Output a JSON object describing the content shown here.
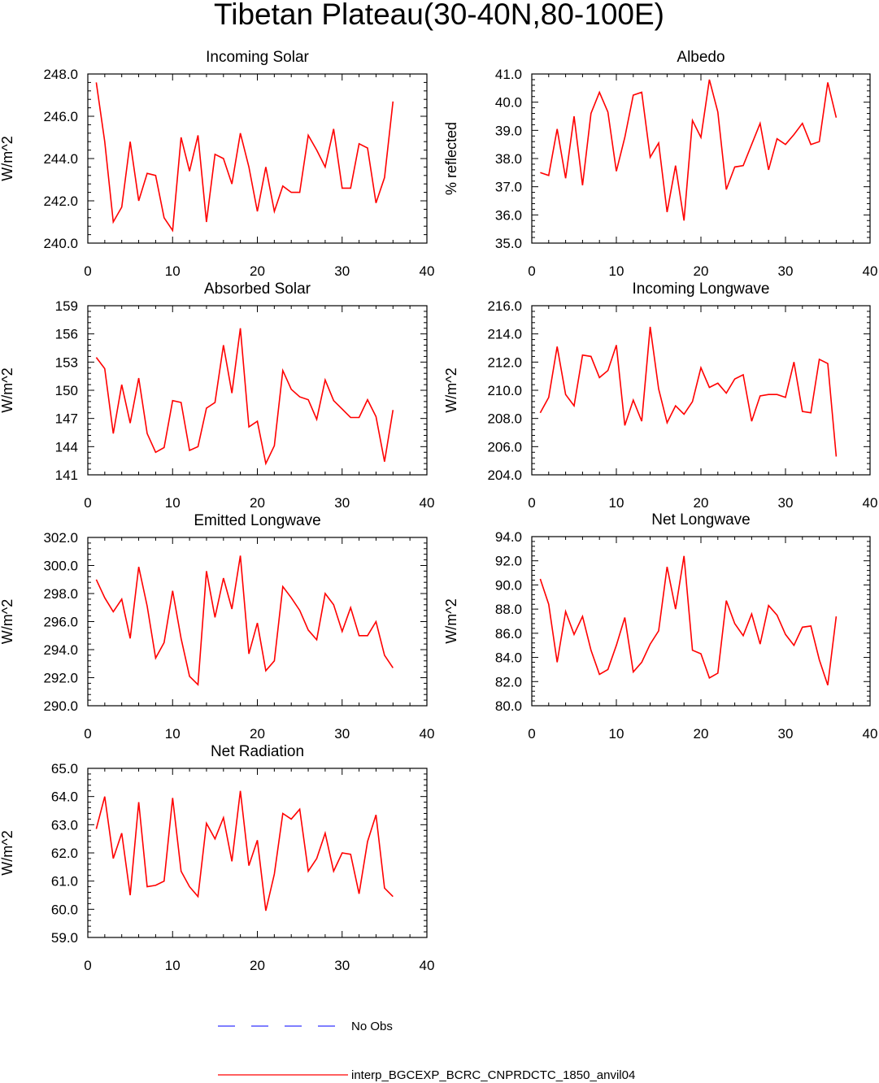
{
  "figure_title": "Tibetan Plateau(30-40N,80-100E)",
  "legend": [
    {
      "label": "No Obs",
      "color": "#3333ff",
      "style": "dashed"
    },
    {
      "label": "interp_BGCEXP_BCRC_CNPRDCTC_1850_anvil04",
      "color": "#ff0000",
      "style": "solid"
    }
  ],
  "chart_data": [
    {
      "type": "line",
      "title": "Incoming Solar",
      "xlabel": "",
      "ylabel": "W/m^2",
      "xlim": [
        0,
        40
      ],
      "ylim": [
        240,
        248
      ],
      "xticks": [
        0,
        10,
        20,
        30,
        40
      ],
      "xtick_labels": [
        "0",
        "10",
        "20",
        "30",
        "40"
      ],
      "yticks": [
        240,
        242,
        244,
        246,
        248
      ],
      "ytick_labels": [
        "240.0",
        "242.0",
        "244.0",
        "246.0",
        "248.0"
      ],
      "series": [
        {
          "name": "interp_BGCEXP_BCRC_CNPRDCTC_1850_anvil04",
          "color": "#ff0000",
          "x": [
            1,
            2,
            3,
            4,
            5,
            6,
            7,
            8,
            9,
            10,
            11,
            12,
            13,
            14,
            15,
            16,
            17,
            18,
            19,
            20,
            21,
            22,
            23,
            24,
            25,
            26,
            27,
            28,
            29,
            30,
            31,
            32,
            33,
            34,
            35,
            36
          ],
          "values": [
            247.6,
            244.8,
            241.0,
            241.7,
            244.8,
            242.0,
            243.3,
            243.2,
            241.2,
            240.6,
            245.0,
            243.4,
            245.1,
            241.0,
            244.2,
            244.0,
            242.8,
            245.2,
            243.6,
            241.5,
            243.6,
            241.5,
            242.7,
            242.4,
            242.4,
            245.1,
            244.4,
            243.6,
            245.4,
            242.6,
            242.6,
            244.7,
            244.5,
            241.9,
            243.1,
            246.7
          ]
        }
      ]
    },
    {
      "type": "line",
      "title": "Albedo",
      "xlabel": "",
      "ylabel": "% reflected",
      "xlim": [
        0,
        40
      ],
      "ylim": [
        35,
        41
      ],
      "xticks": [
        0,
        10,
        20,
        30,
        40
      ],
      "xtick_labels": [
        "0",
        "10",
        "20",
        "30",
        "40"
      ],
      "yticks": [
        35,
        36,
        37,
        38,
        39,
        40,
        41
      ],
      "ytick_labels": [
        "35.0",
        "36.0",
        "37.0",
        "38.0",
        "39.0",
        "40.0",
        "41.0"
      ],
      "series": [
        {
          "name": "interp_BGCEXP_BCRC_CNPRDCTC_1850_anvil04",
          "color": "#ff0000",
          "x": [
            1,
            2,
            3,
            4,
            5,
            6,
            7,
            8,
            9,
            10,
            11,
            12,
            13,
            14,
            15,
            16,
            17,
            18,
            19,
            20,
            21,
            22,
            23,
            24,
            25,
            26,
            27,
            28,
            29,
            30,
            31,
            32,
            33,
            34,
            35,
            36
          ],
          "values": [
            37.5,
            37.4,
            39.05,
            37.3,
            39.5,
            37.05,
            39.6,
            40.35,
            39.65,
            37.55,
            38.75,
            40.25,
            40.35,
            38.05,
            38.55,
            36.1,
            37.75,
            35.8,
            39.35,
            38.75,
            40.8,
            39.65,
            36.9,
            37.7,
            37.75,
            38.5,
            39.25,
            37.6,
            38.7,
            38.5,
            38.85,
            39.25,
            38.5,
            38.6,
            40.7,
            39.45
          ]
        }
      ]
    },
    {
      "type": "line",
      "title": "Absorbed Solar",
      "xlabel": "",
      "ylabel": "W/m^2",
      "xlim": [
        0,
        40
      ],
      "ylim": [
        141,
        159
      ],
      "xticks": [
        0,
        10,
        20,
        30,
        40
      ],
      "xtick_labels": [
        "0",
        "10",
        "20",
        "30",
        "40"
      ],
      "yticks": [
        141,
        144,
        147,
        150,
        153,
        156,
        159
      ],
      "ytick_labels": [
        "141",
        "144",
        "147",
        "150",
        "153",
        "156",
        "159"
      ],
      "series": [
        {
          "name": "interp_BGCEXP_BCRC_CNPRDCTC_1850_anvil04",
          "color": "#ff0000",
          "x": [
            1,
            2,
            3,
            4,
            5,
            6,
            7,
            8,
            9,
            10,
            11,
            12,
            13,
            14,
            15,
            16,
            17,
            18,
            19,
            20,
            21,
            22,
            23,
            24,
            25,
            26,
            27,
            28,
            29,
            30,
            31,
            32,
            33,
            34,
            35,
            36
          ],
          "values": [
            153.5,
            152.3,
            145.4,
            150.6,
            146.5,
            151.3,
            145.4,
            143.4,
            143.9,
            148.9,
            148.7,
            143.6,
            144.0,
            148.1,
            148.7,
            154.8,
            149.7,
            156.6,
            146.1,
            146.7,
            142.2,
            144.1,
            152.1,
            150.1,
            149.3,
            149.0,
            146.9,
            151.1,
            148.9,
            148.0,
            147.1,
            147.1,
            149.0,
            147.2,
            142.4,
            147.9
          ]
        }
      ]
    },
    {
      "type": "line",
      "title": "Incoming Longwave",
      "xlabel": "",
      "ylabel": "W/m^2",
      "xlim": [
        0,
        40
      ],
      "ylim": [
        204,
        216
      ],
      "xticks": [
        0,
        10,
        20,
        30,
        40
      ],
      "xtick_labels": [
        "0",
        "10",
        "20",
        "30",
        "40"
      ],
      "yticks": [
        204,
        206,
        208,
        210,
        212,
        214,
        216
      ],
      "ytick_labels": [
        "204.0",
        "206.0",
        "208.0",
        "210.0",
        "212.0",
        "214.0",
        "216.0"
      ],
      "series": [
        {
          "name": "interp_BGCEXP_BCRC_CNPRDCTC_1850_anvil04",
          "color": "#ff0000",
          "x": [
            1,
            2,
            3,
            4,
            5,
            6,
            7,
            8,
            9,
            10,
            11,
            12,
            13,
            14,
            15,
            16,
            17,
            18,
            19,
            20,
            21,
            22,
            23,
            24,
            25,
            26,
            27,
            28,
            29,
            30,
            31,
            32,
            33,
            34,
            35,
            36
          ],
          "values": [
            208.4,
            209.5,
            213.1,
            209.7,
            208.9,
            212.5,
            212.4,
            210.9,
            211.4,
            213.2,
            207.5,
            209.3,
            207.8,
            214.5,
            210.1,
            207.7,
            208.9,
            208.3,
            209.2,
            211.6,
            210.2,
            210.5,
            209.8,
            210.8,
            211.1,
            207.8,
            209.6,
            209.7,
            209.7,
            209.5,
            212.0,
            208.5,
            208.4,
            212.2,
            211.9,
            205.3
          ]
        }
      ]
    },
    {
      "type": "line",
      "title": "Emitted Longwave",
      "xlabel": "",
      "ylabel": "W/m^2",
      "xlim": [
        0,
        40
      ],
      "ylim": [
        290,
        302
      ],
      "xticks": [
        0,
        10,
        20,
        30,
        40
      ],
      "xtick_labels": [
        "0",
        "10",
        "20",
        "30",
        "40"
      ],
      "yticks": [
        290,
        292,
        294,
        296,
        298,
        300,
        302
      ],
      "ytick_labels": [
        "290.0",
        "292.0",
        "294.0",
        "296.0",
        "298.0",
        "300.0",
        "302.0"
      ],
      "series": [
        {
          "name": "interp_BGCEXP_BCRC_CNPRDCTC_1850_anvil04",
          "color": "#ff0000",
          "x": [
            1,
            2,
            3,
            4,
            5,
            6,
            7,
            8,
            9,
            10,
            11,
            12,
            13,
            14,
            15,
            16,
            17,
            18,
            19,
            20,
            21,
            22,
            23,
            24,
            25,
            26,
            27,
            28,
            29,
            30,
            31,
            32,
            33,
            34,
            35,
            36
          ],
          "values": [
            299.0,
            297.7,
            296.7,
            297.6,
            294.8,
            299.9,
            297.1,
            293.4,
            294.5,
            298.2,
            294.8,
            292.1,
            291.5,
            299.6,
            296.3,
            299.1,
            296.9,
            300.7,
            293.7,
            295.9,
            292.5,
            293.2,
            298.5,
            297.7,
            296.8,
            295.4,
            294.7,
            298.0,
            297.2,
            295.3,
            297.0,
            295.0,
            295.0,
            296.0,
            293.6,
            292.7
          ]
        }
      ]
    },
    {
      "type": "line",
      "title": "Net Longwave",
      "xlabel": "",
      "ylabel": "W/m^2",
      "xlim": [
        0,
        40
      ],
      "ylim": [
        80,
        94
      ],
      "xticks": [
        0,
        10,
        20,
        30,
        40
      ],
      "xtick_labels": [
        "0",
        "10",
        "20",
        "30",
        "40"
      ],
      "yticks": [
        80,
        82,
        84,
        86,
        88,
        90,
        92,
        94
      ],
      "ytick_labels": [
        "80.0",
        "82.0",
        "84.0",
        "86.0",
        "88.0",
        "90.0",
        "92.0",
        "94.0"
      ],
      "series": [
        {
          "name": "interp_BGCEXP_BCRC_CNPRDCTC_1850_anvil04",
          "color": "#ff0000",
          "x": [
            1,
            2,
            3,
            4,
            5,
            6,
            7,
            8,
            9,
            10,
            11,
            12,
            13,
            14,
            15,
            16,
            17,
            18,
            19,
            20,
            21,
            22,
            23,
            24,
            25,
            26,
            27,
            28,
            29,
            30,
            31,
            32,
            33,
            34,
            35,
            36
          ],
          "values": [
            90.5,
            88.4,
            83.6,
            87.8,
            85.9,
            87.4,
            84.6,
            82.6,
            83.0,
            85.0,
            87.3,
            82.8,
            83.6,
            85.1,
            86.2,
            91.5,
            88.0,
            92.4,
            84.6,
            84.3,
            82.3,
            82.7,
            88.7,
            86.8,
            85.8,
            87.6,
            85.1,
            88.3,
            87.5,
            85.9,
            85.0,
            86.5,
            86.6,
            83.8,
            81.7,
            87.4
          ]
        }
      ]
    },
    {
      "type": "line",
      "title": "Net Radiation",
      "xlabel": "",
      "ylabel": "W/m^2",
      "xlim": [
        0,
        40
      ],
      "ylim": [
        59,
        65
      ],
      "xticks": [
        0,
        10,
        20,
        30,
        40
      ],
      "xtick_labels": [
        "0",
        "10",
        "20",
        "30",
        "40"
      ],
      "yticks": [
        59,
        60,
        61,
        62,
        63,
        64,
        65
      ],
      "ytick_labels": [
        "59.0",
        "60.0",
        "61.0",
        "62.0",
        "63.0",
        "64.0",
        "65.0"
      ],
      "series": [
        {
          "name": "interp_BGCEXP_BCRC_CNPRDCTC_1850_anvil04",
          "color": "#ff0000",
          "x": [
            1,
            2,
            3,
            4,
            5,
            6,
            7,
            8,
            9,
            10,
            11,
            12,
            13,
            14,
            15,
            16,
            17,
            18,
            19,
            20,
            21,
            22,
            23,
            24,
            25,
            26,
            27,
            28,
            29,
            30,
            31,
            32,
            33,
            34,
            35,
            36
          ],
          "values": [
            62.85,
            64.0,
            61.8,
            62.7,
            60.5,
            63.8,
            60.8,
            60.85,
            61.0,
            63.95,
            61.35,
            60.8,
            60.45,
            63.05,
            62.5,
            63.25,
            61.7,
            64.2,
            61.55,
            62.45,
            59.95,
            61.25,
            63.4,
            63.2,
            63.55,
            61.35,
            61.8,
            62.7,
            61.35,
            62.0,
            61.95,
            60.55,
            62.4,
            63.35,
            60.75,
            60.45
          ]
        }
      ]
    }
  ]
}
